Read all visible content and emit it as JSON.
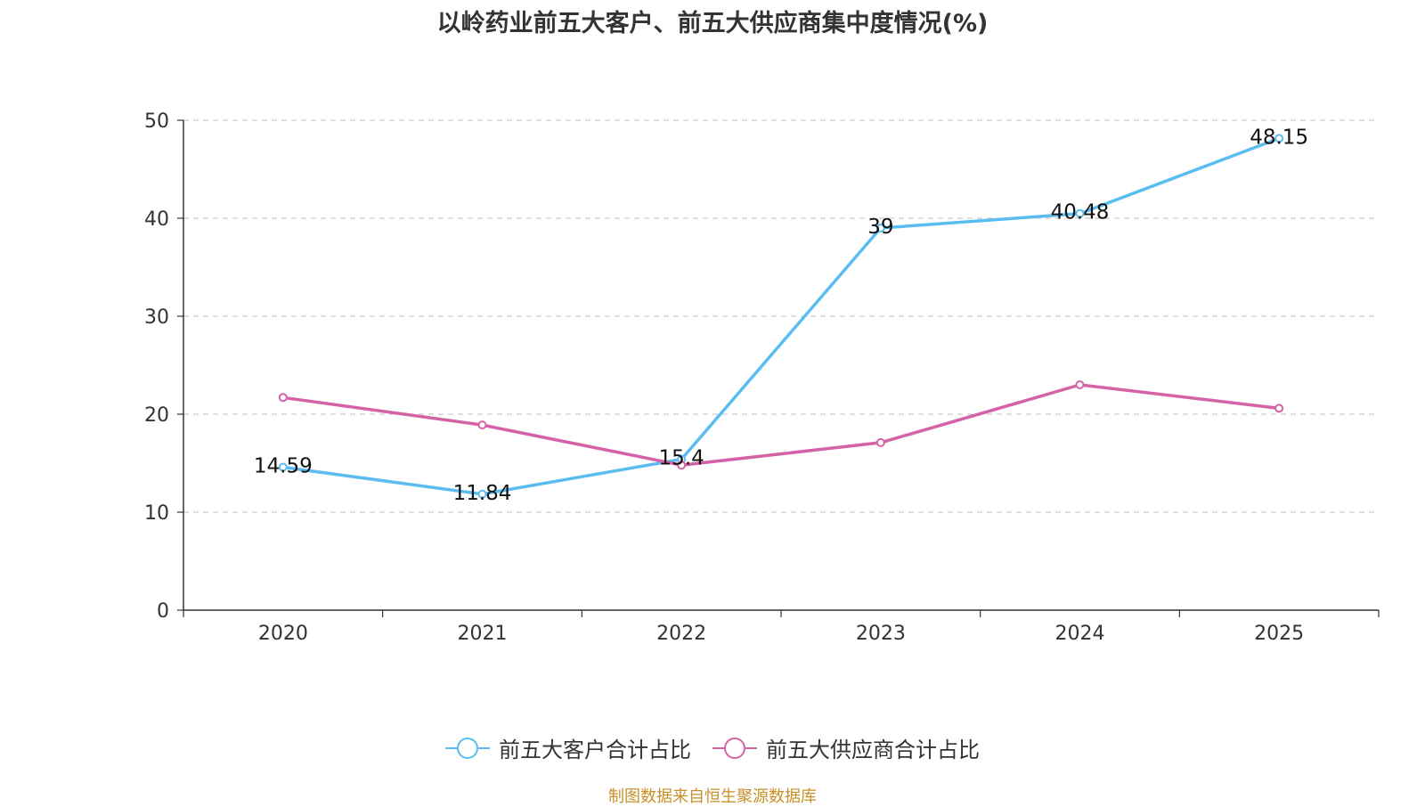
{
  "chart_data": {
    "type": "line",
    "title": "以岭药业前五大客户、前五大供应商集中度情况(%)",
    "categories": [
      "2020",
      "2021",
      "2022",
      "2023",
      "2024",
      "2025"
    ],
    "ylim": [
      0,
      50
    ],
    "yticks": [
      0,
      10,
      20,
      30,
      40,
      50
    ],
    "grid": true,
    "legend_position": "bottom",
    "series": [
      {
        "name": "前五大客户合计占比",
        "color": "#5bbcf0",
        "values": [
          14.59,
          11.84,
          15.4,
          39,
          40.48,
          48.15
        ],
        "labels": [
          "14.59",
          "11.84",
          "15.4",
          "39",
          "40.48",
          "48.15"
        ]
      },
      {
        "name": "前五大供应商合计占比",
        "color": "#d462a6",
        "values": [
          21.7,
          18.9,
          14.8,
          17.1,
          23.0,
          20.6
        ]
      }
    ],
    "source": "制图数据来自恒生聚源数据库"
  }
}
